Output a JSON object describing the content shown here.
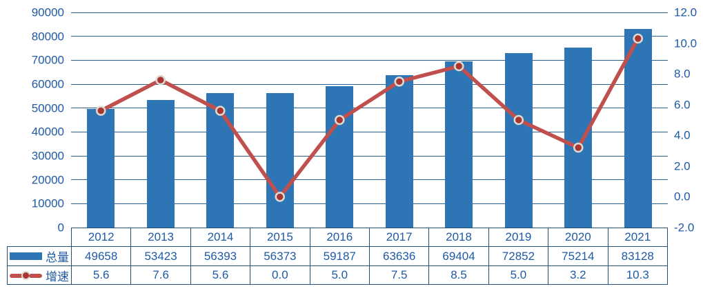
{
  "chart_data": {
    "type": "combo-bar-line",
    "title": "",
    "categories": [
      "2012",
      "2013",
      "2014",
      "2015",
      "2016",
      "2017",
      "2018",
      "2019",
      "2020",
      "2021"
    ],
    "series": [
      {
        "name": "总量",
        "chart_type": "bar",
        "axis": "left",
        "values": [
          49658,
          53423,
          56393,
          56373,
          59187,
          63636,
          69404,
          72852,
          75214,
          83128
        ]
      },
      {
        "name": "增速",
        "chart_type": "line",
        "axis": "right",
        "values": [
          5.6,
          7.6,
          5.6,
          0.0,
          5.0,
          7.5,
          8.5,
          5.0,
          3.2,
          10.3
        ]
      }
    ],
    "left_axis": {
      "min": 0,
      "max": 90000,
      "step": 10000,
      "tick_labels": [
        "0",
        "10000",
        "20000",
        "30000",
        "40000",
        "50000",
        "60000",
        "70000",
        "80000",
        "90000"
      ]
    },
    "right_axis": {
      "min": -2.0,
      "max": 12.0,
      "step": 2.0,
      "tick_labels": [
        "-2.0",
        "0.0",
        "2.0",
        "4.0",
        "6.0",
        "8.0",
        "10.0",
        "12.0"
      ]
    },
    "grid": true,
    "legend_position": "data-table-left"
  },
  "table": {
    "years": [
      "2012",
      "2013",
      "2014",
      "2015",
      "2016",
      "2017",
      "2018",
      "2019",
      "2020",
      "2021"
    ],
    "rows": [
      {
        "label": "总量",
        "icon": "bar-swatch",
        "cells": [
          "49658",
          "53423",
          "56393",
          "56373",
          "59187",
          "63636",
          "69404",
          "72852",
          "75214",
          "83128"
        ]
      },
      {
        "label": "增速",
        "icon": "line-marker",
        "cells": [
          "5.6",
          "7.6",
          "5.6",
          "0.0",
          "5.0",
          "7.5",
          "8.5",
          "5.0",
          "3.2",
          "10.3"
        ]
      }
    ]
  },
  "colors": {
    "bar": "#2E75B6",
    "line": "#C0504D",
    "marker_fill": "#A93430",
    "marker_ring": "#DCD8D2",
    "gridline": "#2B5F8F",
    "axis_text": "#1E5AA5",
    "table_border": "#1F4E79",
    "background": "#FFFFFF"
  }
}
